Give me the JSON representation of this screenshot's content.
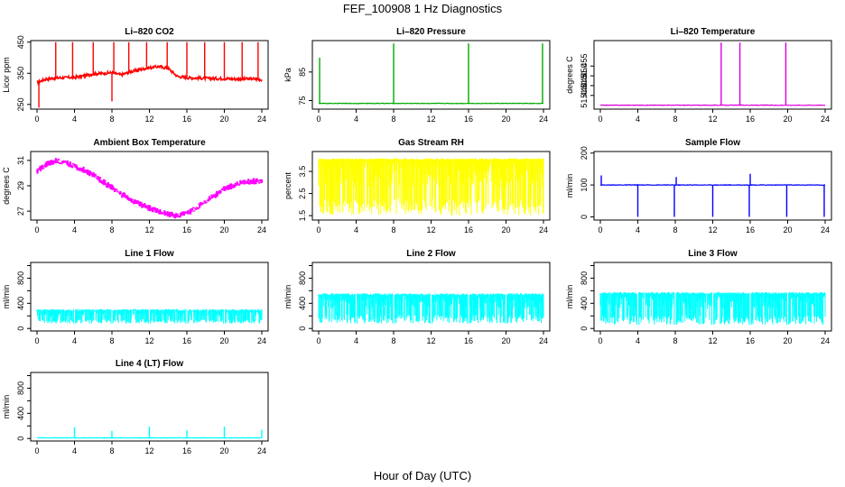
{
  "figure": {
    "title": "FEF_100908  1 Hz Diagnostics",
    "xlabel": "Hour of Day (UTC)"
  },
  "chart_data": [
    {
      "type": "line",
      "title": "Li–820 CO2",
      "ylabel": "Licor ppm",
      "color": "#ff0000",
      "xlim": [
        0,
        24
      ],
      "xticks": [
        "0",
        "4",
        "8",
        "12",
        "16",
        "20",
        "24"
      ],
      "ylim": [
        235,
        455
      ],
      "yticks": [
        250,
        350,
        450
      ],
      "x": [
        0,
        1,
        2,
        3,
        4,
        5,
        6,
        7,
        8,
        9,
        10,
        11,
        12,
        13,
        14,
        15,
        16,
        17,
        18,
        19,
        20,
        21,
        22,
        23,
        24
      ],
      "values": [
        320,
        332,
        335,
        336,
        337,
        342,
        348,
        350,
        352,
        345,
        355,
        362,
        368,
        372,
        366,
        340,
        336,
        335,
        334,
        333,
        333,
        332,
        332,
        332,
        330
      ],
      "spikes": [
        {
          "x": 0.2,
          "y": 240
        },
        {
          "x": 2.0,
          "y": 450
        },
        {
          "x": 3.8,
          "y": 450
        },
        {
          "x": 6.0,
          "y": 450
        },
        {
          "x": 8.0,
          "y": 260
        },
        {
          "x": 8.2,
          "y": 450
        },
        {
          "x": 9.8,
          "y": 450
        },
        {
          "x": 11.7,
          "y": 450
        },
        {
          "x": 13.9,
          "y": 450
        },
        {
          "x": 16.0,
          "y": 450
        },
        {
          "x": 17.9,
          "y": 450
        },
        {
          "x": 20.0,
          "y": 450
        },
        {
          "x": 21.9,
          "y": 450
        },
        {
          "x": 23.6,
          "y": 450
        }
      ]
    },
    {
      "type": "line",
      "title": "Li–820 Pressure",
      "ylabel": "kPa",
      "color": "#00aa00",
      "xlim": [
        0,
        24
      ],
      "xticks": [
        "0",
        "4",
        "8",
        "12",
        "16",
        "20",
        "24"
      ],
      "ylim": [
        72,
        96
      ],
      "yticks": [
        75,
        85
      ],
      "x": [
        0,
        4,
        8,
        12,
        16,
        20,
        24
      ],
      "values": [
        74,
        74,
        74,
        74,
        74,
        74,
        74
      ],
      "spikes": [
        {
          "x": 0.1,
          "y": 90
        },
        {
          "x": 8.0,
          "y": 95
        },
        {
          "x": 16.0,
          "y": 95
        },
        {
          "x": 23.9,
          "y": 95
        }
      ]
    },
    {
      "type": "line",
      "title": "Li–820 Temperature",
      "ylabel": "degrees C",
      "color": "#dd00dd",
      "xlim": [
        0,
        24
      ],
      "xticks": [
        "0",
        "4",
        "8",
        "12",
        "16",
        "20",
        "24"
      ],
      "ylim": [
        51.433,
        51.468
      ],
      "yticks": [
        51.44,
        51.445,
        51.45,
        51.455
      ],
      "ytick_labels": [
        "51.440",
        "51.445",
        "51.450",
        "51.455"
      ],
      "x": [
        0,
        4,
        8,
        12,
        16,
        20,
        24
      ],
      "values": [
        51.435,
        51.435,
        51.435,
        51.435,
        51.435,
        51.435,
        51.435
      ],
      "spikes": [
        {
          "x": 12.9,
          "y": 51.467
        },
        {
          "x": 14.9,
          "y": 51.467
        },
        {
          "x": 19.8,
          "y": 51.467
        }
      ]
    },
    {
      "type": "line",
      "title": "Ambient Box Temperature",
      "ylabel": "degrees C",
      "color": "#ff00ff",
      "xlim": [
        0,
        24
      ],
      "xticks": [
        "0",
        "4",
        "8",
        "12",
        "16",
        "20",
        "24"
      ],
      "ylim": [
        26.3,
        31.7
      ],
      "yticks": [
        27,
        29,
        31
      ],
      "x": [
        0,
        1,
        2,
        3,
        4,
        5,
        6,
        7,
        8,
        9,
        10,
        11,
        12,
        13,
        14,
        15,
        16,
        17,
        18,
        19,
        20,
        21,
        22,
        23,
        24
      ],
      "values": [
        30.2,
        30.8,
        31.0,
        30.9,
        30.6,
        30.3,
        29.9,
        29.4,
        28.9,
        28.4,
        28.0,
        27.6,
        27.3,
        27.0,
        26.8,
        26.7,
        26.9,
        27.3,
        27.8,
        28.3,
        28.8,
        29.1,
        29.3,
        29.4,
        29.5
      ],
      "band": 0.4
    },
    {
      "type": "line",
      "title": "Gas Stream RH",
      "ylabel": "percent",
      "color": "#ffff00",
      "xlim": [
        0,
        24
      ],
      "xticks": [
        "0",
        "4",
        "8",
        "12",
        "16",
        "20",
        "24"
      ],
      "ylim": [
        1.3,
        4.4
      ],
      "yticks": [
        1.5,
        2.5,
        3.5
      ],
      "ytick_labels": [
        "1.5",
        "2.5",
        "3.5"
      ],
      "x": [
        0,
        24
      ],
      "values": [
        4.1,
        4.1
      ],
      "low": 1.5
    },
    {
      "type": "line",
      "title": "Sample Flow",
      "ylabel": "ml/min",
      "color": "#0000ff",
      "xlim": [
        0,
        24
      ],
      "xticks": [
        "0",
        "4",
        "8",
        "12",
        "16",
        "20",
        "24"
      ],
      "ylim": [
        -10,
        205
      ],
      "yticks": [
        0,
        100,
        200
      ],
      "x": [
        0,
        4,
        8,
        12,
        16,
        20,
        24
      ],
      "values": [
        100,
        100,
        100,
        100,
        100,
        100,
        100
      ],
      "spikes": [
        {
          "x": 0.1,
          "y": 130
        },
        {
          "x": 4.0,
          "y": 0
        },
        {
          "x": 7.9,
          "y": 0
        },
        {
          "x": 8.1,
          "y": 125
        },
        {
          "x": 12.0,
          "y": 0
        },
        {
          "x": 15.9,
          "y": 0
        },
        {
          "x": 16.0,
          "y": 135
        },
        {
          "x": 19.9,
          "y": 0
        },
        {
          "x": 23.9,
          "y": 0
        }
      ]
    },
    {
      "type": "line",
      "title": "Line 1 Flow",
      "ylabel": "ml/min",
      "color": "#00ffff",
      "xlim": [
        0,
        24
      ],
      "xticks": [
        "0",
        "4",
        "8",
        "12",
        "16",
        "20",
        "24"
      ],
      "ylim": [
        -40,
        1050
      ],
      "yticks": [
        0,
        200,
        400,
        600,
        800,
        1000
      ],
      "ytick_labels": [
        "0",
        "400",
        "800"
      ],
      "ytick_label_values": [
        0,
        400,
        800
      ],
      "x": [
        0,
        24
      ],
      "values": [
        310,
        310
      ],
      "low": 80,
      "gaps": [
        4.0,
        8.0,
        12.0,
        16.0,
        20.0
      ]
    },
    {
      "type": "line",
      "title": "Line 2 Flow",
      "ylabel": "ml/min",
      "color": "#00ffff",
      "xlim": [
        0,
        24
      ],
      "xticks": [
        "0",
        "4",
        "8",
        "12",
        "16",
        "20",
        "24"
      ],
      "ylim": [
        -40,
        1050
      ],
      "yticks": [
        0,
        200,
        400,
        600,
        800,
        1000
      ],
      "ytick_labels": [
        "0",
        "400",
        "800"
      ],
      "ytick_label_values": [
        0,
        400,
        800
      ],
      "x": [
        0,
        24
      ],
      "values": [
        560,
        560
      ],
      "low": 80,
      "gaps": [
        4.0,
        8.0,
        12.0,
        16.0,
        20.0
      ]
    },
    {
      "type": "line",
      "title": "Line 3 Flow",
      "ylabel": "ml/min",
      "color": "#00ffff",
      "xlim": [
        0,
        24
      ],
      "xticks": [
        "0",
        "4",
        "8",
        "12",
        "16",
        "20",
        "24"
      ],
      "ylim": [
        -40,
        1050
      ],
      "yticks": [
        0,
        200,
        400,
        600,
        800,
        1000
      ],
      "ytick_labels": [
        "0",
        "400",
        "800"
      ],
      "ytick_label_values": [
        0,
        400,
        800
      ],
      "x": [
        0,
        24
      ],
      "values": [
        580,
        580
      ],
      "low": 60,
      "gaps": [
        4.0,
        8.0,
        12.0,
        16.0,
        20.0
      ]
    },
    {
      "type": "line",
      "title": "Line 4 (LT) Flow",
      "ylabel": "ml/min",
      "color": "#00ffff",
      "xlim": [
        0,
        24
      ],
      "xticks": [
        "0",
        "4",
        "8",
        "12",
        "16",
        "20",
        "24"
      ],
      "ylim": [
        -40,
        1050
      ],
      "yticks": [
        0,
        200,
        400,
        600,
        800,
        1000
      ],
      "ytick_labels": [
        "0",
        "400",
        "800"
      ],
      "ytick_label_values": [
        0,
        400,
        800
      ],
      "x": [
        0,
        24
      ],
      "values": [
        10,
        10
      ],
      "spikes": [
        {
          "x": 4.0,
          "y": 180
        },
        {
          "x": 8.0,
          "y": 120
        },
        {
          "x": 12.0,
          "y": 190
        },
        {
          "x": 16.0,
          "y": 130
        },
        {
          "x": 20.0,
          "y": 190
        },
        {
          "x": 24.0,
          "y": 140
        }
      ]
    }
  ]
}
